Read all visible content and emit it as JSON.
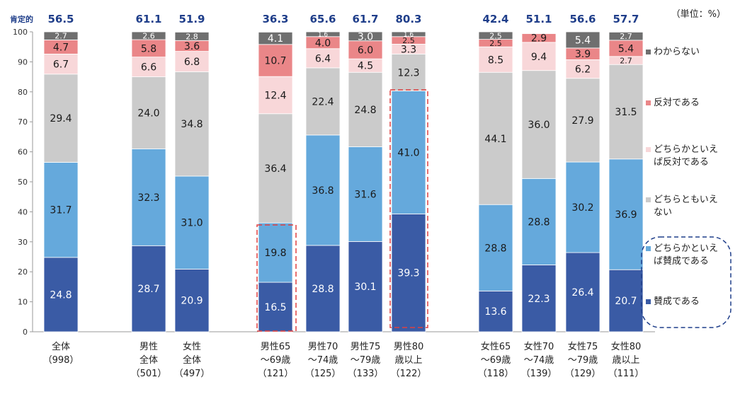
{
  "chart_data": {
    "type": "bar",
    "stacked": true,
    "unit_note": "（単位：%）",
    "affirm_label": "肯定的",
    "ylim": [
      0,
      100
    ],
    "yticks": [
      0,
      10,
      20,
      30,
      40,
      50,
      60,
      70,
      80,
      90,
      100
    ],
    "categories": [
      {
        "line1": "全体",
        "line2": "",
        "n": "（998）"
      },
      {
        "line1": "男性",
        "line2": "全体",
        "n": "（501）"
      },
      {
        "line1": "女性",
        "line2": "全体",
        "n": "（497）"
      },
      {
        "line1": "男性65",
        "line2": "～69歳",
        "n": "（121）"
      },
      {
        "line1": "男性70",
        "line2": "～74歳",
        "n": "（125）"
      },
      {
        "line1": "男性75",
        "line2": "～79歳",
        "n": "（133）"
      },
      {
        "line1": "男性80",
        "line2": "歳以上",
        "n": "（122）"
      },
      {
        "line1": "女性65",
        "line2": "～69歳",
        "n": "（118）"
      },
      {
        "line1": "女性70",
        "line2": "～74歳",
        "n": "（139）"
      },
      {
        "line1": "女性75",
        "line2": "～79歳",
        "n": "（129）"
      },
      {
        "line1": "女性80",
        "line2": "歳以上",
        "n": "（111）"
      }
    ],
    "affirmative_totals": [
      "56.5",
      "61.1",
      "51.9",
      "36.3",
      "65.6",
      "61.7",
      "80.3",
      "42.4",
      "51.1",
      "56.6",
      "57.7"
    ],
    "series": [
      {
        "name": "賛成である",
        "color": "#3a5ba5",
        "label_color": "#ffffff",
        "values": [
          24.8,
          28.7,
          20.9,
          16.5,
          28.8,
          30.1,
          39.3,
          13.6,
          22.3,
          26.4,
          20.7
        ]
      },
      {
        "name": "どちらかといえば賛成である",
        "color": "#65a9dc",
        "label_color": "#1a1a1a",
        "values": [
          31.7,
          32.3,
          31.0,
          19.8,
          36.8,
          31.6,
          41.0,
          28.8,
          28.8,
          30.2,
          36.9
        ]
      },
      {
        "name": "どちらともいえない",
        "color": "#cbcbcb",
        "label_color": "#1a1a1a",
        "values": [
          29.4,
          24.0,
          34.8,
          36.4,
          22.4,
          24.8,
          12.3,
          44.1,
          36.0,
          27.9,
          31.5
        ]
      },
      {
        "name": "どちらかといえば反対である",
        "color": "#f8d7d9",
        "label_color": "#1a1a1a",
        "values": [
          6.7,
          6.6,
          6.8,
          12.4,
          6.4,
          4.5,
          3.3,
          8.5,
          9.4,
          6.2,
          2.7
        ]
      },
      {
        "name": "反対である",
        "color": "#ea8688",
        "label_color": "#1a1a1a",
        "values": [
          4.7,
          5.8,
          3.6,
          10.7,
          4.0,
          6.0,
          2.5,
          2.5,
          2.9,
          3.9,
          5.4
        ]
      },
      {
        "name": "わからない",
        "color": "#6f6f6f",
        "label_color": "#ffffff",
        "values": [
          2.7,
          2.6,
          2.8,
          4.1,
          1.6,
          3.0,
          1.6,
          2.5,
          0,
          5.4,
          2.7
        ]
      }
    ],
    "legend": [
      {
        "lines": [
          "わからない"
        ],
        "color": "#6f6f6f"
      },
      {
        "lines": [
          "反対である"
        ],
        "color": "#ea8688"
      },
      {
        "lines": [
          "どちらかといえ",
          "ば反対である"
        ],
        "color": "#f8d7d9"
      },
      {
        "lines": [
          "どちらともいえ",
          "ない"
        ],
        "color": "#cbcbcb"
      },
      {
        "lines": [
          "どちらかといえ",
          "ば賛成である"
        ],
        "color": "#65a9dc"
      },
      {
        "lines": [
          "賛成である"
        ],
        "color": "#3a5ba5"
      }
    ],
    "legend_placement": "right",
    "highlighted_bars": [
      "男性65～69歳",
      "男性80歳以上"
    ],
    "grid": false
  }
}
